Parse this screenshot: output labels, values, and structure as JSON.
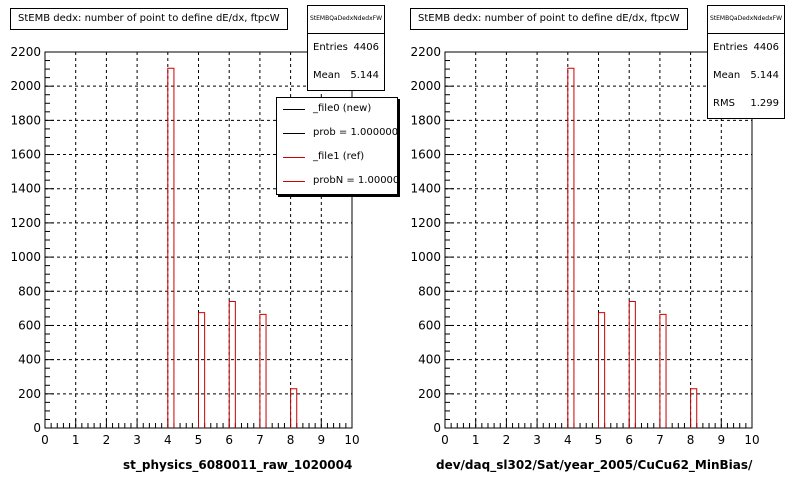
{
  "footer_text": "",
  "legend": {
    "entries": [
      {
        "label": "_file0 (new)",
        "color": "#000000"
      },
      {
        "label": "prob = 1.000000",
        "color": "#000000"
      },
      {
        "label": "_file1 (ref)",
        "color": "#cc0000"
      },
      {
        "label": "probN = 1.000000",
        "color": "#cc0000"
      }
    ]
  },
  "chart_data": [
    {
      "type": "bar",
      "title": "StEMB dedx: number of point to define dE/dx, ftpcW",
      "xlabel": "st_physics_6080011_raw_1020004",
      "ylabel": "",
      "xlim": [
        0,
        10
      ],
      "ylim": [
        0,
        2200
      ],
      "x_ticks": [
        "0",
        "1",
        "2",
        "3",
        "4",
        "5",
        "6",
        "7",
        "8",
        "9",
        "10"
      ],
      "y_ticks": [
        "0",
        "200",
        "400",
        "600",
        "800",
        "1000",
        "1200",
        "1400",
        "1600",
        "1800",
        "2000",
        "2200"
      ],
      "grid": true,
      "bin_width": 0.2,
      "bins": [
        {
          "x": 4.0,
          "value": 2105
        },
        {
          "x": 5.0,
          "value": 675
        },
        {
          "x": 6.0,
          "value": 740
        },
        {
          "x": 7.0,
          "value": 665
        },
        {
          "x": 8.0,
          "value": 230
        }
      ],
      "series_color": "#cc0000",
      "stats": {
        "name": "StEMBQaDedxNdedxFW",
        "rows": [
          {
            "label": "Entries",
            "value": "4406"
          },
          {
            "label": "Mean",
            "value": "5.144"
          }
        ]
      },
      "legend_position": "top-right"
    },
    {
      "type": "bar",
      "title": "StEMB dedx: number of point to define dE/dx, ftpcW",
      "xlabel": "dev/daq_sl302/Sat/year_2005/CuCu62_MinBias/",
      "ylabel": "",
      "xlim": [
        0,
        10
      ],
      "ylim": [
        0,
        2200
      ],
      "x_ticks": [
        "0",
        "1",
        "2",
        "3",
        "4",
        "5",
        "6",
        "7",
        "8",
        "9",
        "10"
      ],
      "y_ticks": [
        "0",
        "200",
        "400",
        "600",
        "800",
        "1000",
        "1200",
        "1400",
        "1600",
        "1800",
        "2000",
        "2200"
      ],
      "grid": true,
      "bin_width": 0.2,
      "bins": [
        {
          "x": 4.0,
          "value": 2105
        },
        {
          "x": 5.0,
          "value": 675
        },
        {
          "x": 6.0,
          "value": 740
        },
        {
          "x": 7.0,
          "value": 665
        },
        {
          "x": 8.0,
          "value": 230
        }
      ],
      "series_color": "#cc0000",
      "stats": {
        "name": "StEMBQaDedxNdedxFW",
        "rows": [
          {
            "label": "Entries",
            "value": "4406"
          },
          {
            "label": "Mean",
            "value": "5.144"
          },
          {
            "label": "RMS",
            "value": "1.299"
          }
        ]
      }
    }
  ]
}
